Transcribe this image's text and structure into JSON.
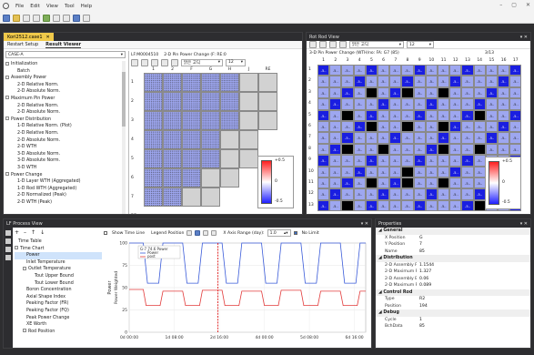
{
  "menu": [
    "File",
    "Edit",
    "View",
    "Tool",
    "Help"
  ],
  "window_controls": [
    "–",
    "▢",
    "✕"
  ],
  "doc_tab": {
    "label": "Kori2512.case1",
    "close": "✕"
  },
  "subtabs": [
    "Restart Setup",
    "Result Viewer"
  ],
  "case_combo": "CASE-A",
  "assembly_view": {
    "id_label": "LF:M0004510",
    "title": "2-D Pin Power Change (F: RE:0",
    "font": "맑은 고딕",
    "size": "12",
    "columns": [
      "1",
      "2",
      "F",
      "G",
      "H",
      "J",
      "RE"
    ],
    "rows": [
      "1",
      "2",
      "3",
      "4",
      "5",
      "6",
      "7",
      "RE"
    ],
    "colorbar": {
      "max": "+0.5",
      "mid": "0",
      "min": "-0.5"
    }
  },
  "tree_items": [
    {
      "label": "Initialization",
      "indent": 0,
      "expander": true
    },
    {
      "label": "Batch",
      "indent": 1
    },
    {
      "label": "Assembly Power",
      "indent": 0,
      "expander": true
    },
    {
      "label": "2-D Relative Norm.",
      "indent": 1
    },
    {
      "label": "2-D Absolute Norm.",
      "indent": 1
    },
    {
      "label": "Maximum Pin Power",
      "indent": 0,
      "expander": true
    },
    {
      "label": "2-D Relative Norm.",
      "indent": 1
    },
    {
      "label": "2-D Absolute Norm.",
      "indent": 1
    },
    {
      "label": "Power Distribution",
      "indent": 0,
      "expander": true
    },
    {
      "label": "1-D Relative Norm. (Plot)",
      "indent": 1
    },
    {
      "label": "2-D Relative Norm.",
      "indent": 1
    },
    {
      "label": "2-D Absolute Norm.",
      "indent": 1
    },
    {
      "label": "2-D WTH",
      "indent": 1
    },
    {
      "label": "3-D Absolute Norm.",
      "indent": 1
    },
    {
      "label": "3-D Absolute Norm.",
      "indent": 1
    },
    {
      "label": "3-D WTH",
      "indent": 1
    },
    {
      "label": "Power Change",
      "indent": 0,
      "expander": true
    },
    {
      "label": "1-D Layer WTH (Aggregated)",
      "indent": 1
    },
    {
      "label": "1-D Rod WTH (Aggregated)",
      "indent": 1
    },
    {
      "label": "2-D Normalized (Peak)",
      "indent": 1
    },
    {
      "label": "2-D WTH (Peak)",
      "indent": 1
    }
  ],
  "rod_view": {
    "title": "Rot Rod View",
    "subtitle": "3-D Pin Power Change (WTH/no: FA: G7 (85)",
    "page": "3/13",
    "font": "맑은 고딕",
    "size": "12",
    "columns": [
      "1",
      "2",
      "3",
      "4",
      "5",
      "6",
      "7",
      "8",
      "9",
      "10",
      "11",
      "12",
      "13",
      "14",
      "15",
      "16",
      "17"
    ],
    "rows": [
      "1",
      "2",
      "3",
      "4",
      "5",
      "6",
      "7",
      "8",
      "9",
      "10",
      "11",
      "12",
      "13"
    ],
    "cell_value": "-5..",
    "colorbar": {
      "max": "+0.5",
      "mid": "0",
      "min": "-0.5"
    }
  },
  "process_view": {
    "title": "LF Process View",
    "show_time_line": "Show Time Line",
    "legend_position": "Legend Position",
    "x_axis_range": "X Axis Range (day):",
    "x_axis_value": "1.0",
    "no_limit": "No Limit",
    "tree": [
      {
        "label": "Time Table",
        "indent": 0
      },
      {
        "label": "Time Chart",
        "indent": 0,
        "expander": true
      },
      {
        "label": "Power",
        "indent": 1,
        "selected": true
      },
      {
        "label": "Inlet Temperature",
        "indent": 1
      },
      {
        "label": "Outlet Temperature",
        "indent": 1,
        "expander": true
      },
      {
        "label": "Tout Upper Bound",
        "indent": 2
      },
      {
        "label": "Tout Lower Bound",
        "indent": 2
      },
      {
        "label": "Boron Concentration",
        "indent": 1
      },
      {
        "label": "Axial Shape Index",
        "indent": 1
      },
      {
        "label": "Peaking Factor (FR)",
        "indent": 1
      },
      {
        "label": "Peaking Factor (FQ)",
        "indent": 1
      },
      {
        "label": "Peak Power Change",
        "indent": 1
      },
      {
        "label": "XE Worth",
        "indent": 1
      },
      {
        "label": "Rod Position",
        "indent": 1,
        "expander": true
      }
    ]
  },
  "chart_data": {
    "type": "line",
    "ylabel": "Power",
    "ylabel2": "Power Weighted",
    "yticks": [
      "100",
      "75",
      "50",
      "25",
      "0"
    ],
    "xticks": [
      "0d 00:00",
      "1d 08:00",
      "2d 16:00",
      "4d 00:00",
      "5d 08:00",
      "6d 16:00"
    ],
    "ylim": [
      0,
      100
    ],
    "xlim_hours": [
      0,
      168
    ],
    "cursor_hours": 63,
    "cursor_label": "G-7 74.6 Power",
    "series": [
      {
        "name": "Power",
        "color": "#3a5bd9",
        "points": [
          [
            0,
            100
          ],
          [
            10,
            100
          ],
          [
            13,
            55
          ],
          [
            21,
            55
          ],
          [
            24,
            100
          ],
          [
            38,
            100
          ],
          [
            41,
            55
          ],
          [
            49,
            55
          ],
          [
            52,
            100
          ],
          [
            66,
            100
          ],
          [
            69,
            55
          ],
          [
            77,
            55
          ],
          [
            80,
            100
          ],
          [
            94,
            100
          ],
          [
            97,
            55
          ],
          [
            105,
            55
          ],
          [
            108,
            100
          ],
          [
            122,
            100
          ],
          [
            125,
            55
          ],
          [
            133,
            55
          ],
          [
            136,
            100
          ],
          [
            150,
            100
          ],
          [
            153,
            55
          ],
          [
            161,
            55
          ],
          [
            164,
            100
          ],
          [
            168,
            100
          ]
        ]
      },
      {
        "name": "post",
        "color": "#e23b3b",
        "points": [
          [
            0,
            48
          ],
          [
            10,
            48
          ],
          [
            12,
            30
          ],
          [
            22,
            30
          ],
          [
            24,
            46
          ],
          [
            38,
            46
          ],
          [
            40,
            30
          ],
          [
            50,
            30
          ],
          [
            52,
            47
          ],
          [
            66,
            47
          ],
          [
            68,
            30
          ],
          [
            78,
            30
          ],
          [
            80,
            46
          ],
          [
            94,
            46
          ],
          [
            96,
            30
          ],
          [
            106,
            30
          ],
          [
            108,
            47
          ],
          [
            122,
            47
          ],
          [
            124,
            30
          ],
          [
            134,
            30
          ],
          [
            136,
            46
          ],
          [
            150,
            46
          ],
          [
            152,
            30
          ],
          [
            162,
            30
          ],
          [
            164,
            46
          ],
          [
            168,
            46
          ]
        ]
      }
    ]
  },
  "properties": {
    "title": "Properties",
    "categories": [
      {
        "name": "General",
        "items": [
          [
            "X Position",
            "G"
          ],
          [
            "Y Position",
            "7"
          ],
          [
            "Name",
            "85"
          ]
        ]
      },
      {
        "name": "Distribution",
        "items": [
          [
            "2-D Assembly Pow",
            "1.1544"
          ],
          [
            "2-D Maximum Pin",
            "1.327"
          ],
          [
            "2-D Assembly Burn",
            "0.06"
          ],
          [
            "2-D Maximum Pin",
            "0.089"
          ]
        ]
      },
      {
        "name": "Control Rod",
        "items": [
          [
            "Type",
            "R2"
          ],
          [
            "Position",
            "194"
          ]
        ]
      },
      {
        "name": "Debug",
        "items": [
          [
            "Cycle",
            "1"
          ],
          [
            "BchData",
            "85"
          ]
        ]
      }
    ]
  },
  "colors": {
    "accent": "#f0c94a",
    "dark": "#2d2d30",
    "cellblue": "#9ea7f0",
    "lowblue": "#1a1ee0",
    "black": "#000000"
  }
}
